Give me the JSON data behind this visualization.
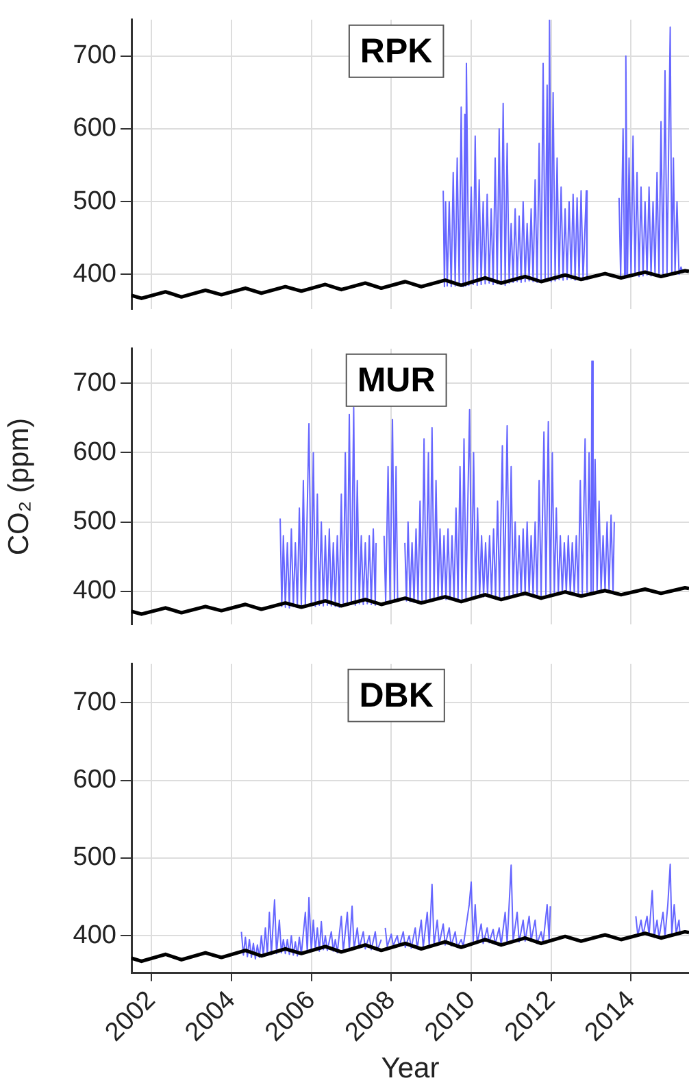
{
  "chart_data": [
    {
      "type": "line",
      "title": "RPK",
      "xlim": [
        2001.5,
        2015.45
      ],
      "xticks": [
        2002,
        2004,
        2006,
        2008,
        2010,
        2012,
        2014
      ],
      "ylim": [
        352,
        750
      ],
      "yticks": [
        400,
        500,
        600,
        700
      ],
      "grid": true,
      "tick_labels": "y",
      "series": [
        {
          "color": "#6666ff",
          "x": [
            2009.3,
            2009.33,
            2009.36,
            2009.4,
            2009.45,
            2009.5,
            2009.55,
            2009.6,
            2009.65,
            2009.7,
            2009.75,
            2009.8,
            2009.84,
            2009.86,
            2009.88,
            2009.94,
            2010.0,
            2010.05,
            2010.1,
            2010.15,
            2010.2,
            2010.25,
            2010.3,
            2010.35,
            2010.4,
            2010.45,
            2010.5,
            2010.55,
            2010.6,
            2010.65,
            2010.7,
            2010.75,
            2010.8,
            2010.85,
            2010.9,
            2010.95,
            2011.0,
            2011.05,
            2011.1,
            2011.15,
            2011.2,
            2011.25,
            2011.3,
            2011.35,
            2011.4,
            2011.45,
            2011.5,
            2011.55,
            2011.6,
            2011.65,
            2011.7,
            2011.75,
            2011.8,
            2011.85,
            2011.9,
            2011.93,
            2011.96,
            2012.0,
            2012.05,
            2012.1,
            2012.15,
            2012.2,
            2012.25,
            2012.3,
            2012.35,
            2012.4,
            2012.45,
            2012.5,
            2012.55,
            2012.6,
            2012.65,
            2012.7,
            2012.75,
            2012.8,
            2012.88,
            2012.9,
            2013.3,
            2013.7,
            2013.74,
            2013.8,
            2013.84,
            2013.87,
            2013.91,
            2013.95,
            2014.0,
            2014.05,
            2014.1,
            2014.15,
            2014.2,
            2014.25,
            2014.3,
            2014.35,
            2014.4,
            2014.45,
            2014.5,
            2014.55,
            2014.6,
            2014.65,
            2014.7,
            2014.75,
            2014.8,
            2014.85,
            2014.9,
            2014.98,
            2015.02,
            2015.06,
            2015.1,
            2015.15,
            2015.2,
            2015.25,
            2015.3
          ],
          "values": [
            515,
            383,
            500,
            384,
            500,
            383,
            540,
            384,
            560,
            385,
            630,
            383,
            620,
            384,
            690,
            385,
            520,
            386,
            590,
            385,
            530,
            386,
            500,
            387,
            510,
            388,
            490,
            386,
            560,
            387,
            600,
            386,
            635,
            385,
            580,
            388,
            470,
            389,
            490,
            390,
            480,
            389,
            500,
            390,
            470,
            391,
            490,
            390,
            530,
            389,
            580,
            390,
            690,
            392,
            660,
            392,
            750,
            390,
            650,
            391,
            560,
            393,
            520,
            392,
            490,
            393,
            500,
            394,
            510,
            392,
            505,
            393,
            515,
            392,
            515,
            393,
            null,
            505,
            396,
            600,
            397,
            700,
            396,
            560,
            397,
            590,
            398,
            540,
            397,
            520,
            398,
            500,
            399,
            520,
            398,
            500,
            399,
            540,
            398,
            610,
            399,
            680,
            400,
            740,
            400,
            560,
            401,
            500,
            400,
            410,
            402
          ]
        },
        {
          "color": "#000000",
          "x": [
            2001.5,
            2001.75,
            2002.35,
            2002.75,
            2003.35,
            2003.75,
            2004.35,
            2004.75,
            2005.35,
            2005.75,
            2006.35,
            2006.75,
            2007.35,
            2007.75,
            2008.35,
            2008.75,
            2009.35,
            2009.75,
            2010.35,
            2010.75,
            2011.35,
            2011.75,
            2012.35,
            2012.75,
            2013.35,
            2013.75,
            2014.35,
            2014.75,
            2015.35,
            2015.45
          ],
          "values": [
            371,
            367,
            376,
            369,
            378,
            372,
            381,
            374,
            383,
            377,
            386,
            379,
            388,
            381,
            390,
            383,
            392,
            385,
            395,
            388,
            397,
            390,
            399,
            393,
            401,
            395,
            403,
            397,
            405,
            404
          ]
        }
      ]
    },
    {
      "type": "line",
      "title": "MUR",
      "ylabel": "CO₂ (ppm)",
      "xlim": [
        2001.5,
        2015.45
      ],
      "xticks": [
        2002,
        2004,
        2006,
        2008,
        2010,
        2012,
        2014
      ],
      "ylim": [
        352,
        750
      ],
      "yticks": [
        400,
        500,
        600,
        700
      ],
      "grid": true,
      "tick_labels": "y",
      "series": [
        {
          "color": "#6666ff",
          "x": [
            2005.22,
            2005.26,
            2005.3,
            2005.35,
            2005.4,
            2005.45,
            2005.5,
            2005.55,
            2005.6,
            2005.65,
            2005.7,
            2005.75,
            2005.8,
            2005.85,
            2005.94,
            2006.0,
            2006.05,
            2006.1,
            2006.15,
            2006.2,
            2006.25,
            2006.3,
            2006.35,
            2006.4,
            2006.45,
            2006.5,
            2006.55,
            2006.6,
            2006.65,
            2006.7,
            2006.75,
            2006.8,
            2006.85,
            2006.9,
            2006.95,
            2007.0,
            2007.06,
            2007.1,
            2007.15,
            2007.2,
            2007.25,
            2007.3,
            2007.35,
            2007.4,
            2007.45,
            2007.5,
            2007.55,
            2007.6,
            2007.62,
            2007.7,
            2007.82,
            2007.86,
            2007.92,
            2007.97,
            2008.03,
            2008.08,
            2008.12,
            2008.16,
            2008.25,
            2008.34,
            2008.38,
            2008.42,
            2008.47,
            2008.52,
            2008.57,
            2008.62,
            2008.67,
            2008.72,
            2008.77,
            2008.82,
            2008.87,
            2008.93,
            2008.97,
            2009.02,
            2009.07,
            2009.12,
            2009.17,
            2009.22,
            2009.27,
            2009.32,
            2009.37,
            2009.42,
            2009.47,
            2009.52,
            2009.57,
            2009.62,
            2009.67,
            2009.72,
            2009.77,
            2009.82,
            2009.87,
            2009.96,
            2010.01,
            2010.06,
            2010.11,
            2010.16,
            2010.21,
            2010.26,
            2010.31,
            2010.36,
            2010.41,
            2010.46,
            2010.51,
            2010.56,
            2010.61,
            2010.66,
            2010.71,
            2010.78,
            2010.83,
            2010.9,
            2010.95,
            2011.0,
            2011.05,
            2011.1,
            2011.15,
            2011.2,
            2011.25,
            2011.3,
            2011.35,
            2011.4,
            2011.45,
            2011.5,
            2011.55,
            2011.6,
            2011.65,
            2011.7,
            2011.75,
            2011.82,
            2011.87,
            2011.93,
            2011.98,
            2012.03,
            2012.08,
            2012.13,
            2012.18,
            2012.23,
            2012.28,
            2012.33,
            2012.38,
            2012.43,
            2012.48,
            2012.53,
            2012.58,
            2012.63,
            2012.68,
            2012.73,
            2012.78,
            2012.85,
            2012.9,
            2012.95,
            2013.0,
            2013.02,
            2013.05,
            2013.1,
            2013.15,
            2013.2,
            2013.25,
            2013.3,
            2013.35,
            2013.4,
            2013.45,
            2013.5,
            2013.55,
            2013.58
          ],
          "values": [
            505,
            378,
            480,
            377,
            470,
            376,
            490,
            378,
            470,
            377,
            520,
            376,
            560,
            378,
            642,
            379,
            600,
            378,
            540,
            380,
            500,
            379,
            480,
            380,
            490,
            379,
            470,
            378,
            480,
            377,
            540,
            378,
            600,
            380,
            655,
            381,
            665,
            380,
            560,
            382,
            480,
            381,
            470,
            382,
            480,
            381,
            490,
            380,
            470,
            null,
            480,
            384,
            580,
            385,
            648,
            386,
            580,
            385,
            null,
            470,
            386,
            500,
            385,
            470,
            384,
            490,
            386,
            530,
            385,
            620,
            387,
            600,
            388,
            636,
            387,
            560,
            388,
            490,
            389,
            480,
            388,
            490,
            389,
            480,
            388,
            520,
            387,
            580,
            388,
            620,
            390,
            662,
            391,
            600,
            392,
            520,
            391,
            480,
            392,
            470,
            393,
            480,
            392,
            490,
            391,
            530,
            390,
            610,
            392,
            639,
            393,
            580,
            394,
            500,
            395,
            480,
            394,
            490,
            395,
            500,
            394,
            480,
            393,
            500,
            392,
            560,
            393,
            630,
            395,
            645,
            396,
            600,
            397,
            520,
            396,
            480,
            397,
            470,
            398,
            480,
            397,
            470,
            396,
            480,
            395,
            560,
            396,
            620,
            398,
            600,
            399,
            732,
            399,
            590,
            400,
            530,
            401,
            480,
            400,
            500,
            401,
            510,
            400,
            500
          ]
        },
        {
          "color": "#000000",
          "x": [
            2001.5,
            2001.75,
            2002.35,
            2002.75,
            2003.35,
            2003.75,
            2004.35,
            2004.75,
            2005.35,
            2005.75,
            2006.35,
            2006.75,
            2007.35,
            2007.75,
            2008.35,
            2008.75,
            2009.35,
            2009.75,
            2010.35,
            2010.75,
            2011.35,
            2011.75,
            2012.35,
            2012.75,
            2013.35,
            2013.75,
            2014.35,
            2014.75,
            2015.35,
            2015.45
          ],
          "values": [
            371,
            367,
            376,
            369,
            378,
            372,
            381,
            374,
            383,
            377,
            386,
            379,
            388,
            381,
            390,
            383,
            392,
            385,
            395,
            388,
            397,
            390,
            399,
            393,
            401,
            395,
            403,
            397,
            405,
            404
          ]
        }
      ]
    },
    {
      "type": "line",
      "title": "DBK",
      "xlabel": "Year",
      "xlim": [
        2001.5,
        2015.45
      ],
      "xticks": [
        2002,
        2004,
        2006,
        2008,
        2010,
        2012,
        2014
      ],
      "ylim": [
        352,
        750
      ],
      "yticks": [
        400,
        500,
        600,
        700
      ],
      "grid": true,
      "series": [
        {
          "color": "#6666ff",
          "x": [
            2004.25,
            2004.3,
            2004.35,
            2004.4,
            2004.45,
            2004.5,
            2004.55,
            2004.6,
            2004.65,
            2004.7,
            2004.75,
            2004.8,
            2004.85,
            2004.9,
            2004.95,
            2005.0,
            2005.08,
            2005.13,
            2005.2,
            2005.25,
            2005.3,
            2005.35,
            2005.4,
            2005.45,
            2005.5,
            2005.55,
            2005.6,
            2005.65,
            2005.7,
            2005.75,
            2005.85,
            2005.9,
            2005.94,
            2006.0,
            2006.05,
            2006.1,
            2006.15,
            2006.2,
            2006.25,
            2006.3,
            2006.35,
            2006.4,
            2006.5,
            2006.55,
            2006.6,
            2006.65,
            2006.75,
            2006.8,
            2006.9,
            2006.95,
            2007.02,
            2007.07,
            2007.15,
            2007.2,
            2007.3,
            2007.35,
            2007.45,
            2007.5,
            2007.6,
            2007.65,
            2007.75,
            2007.78,
            2007.85,
            2007.9,
            2008.0,
            2008.05,
            2008.15,
            2008.2,
            2008.3,
            2008.35,
            2008.45,
            2008.5,
            2008.6,
            2008.65,
            2008.75,
            2008.8,
            2008.9,
            2008.95,
            2009.02,
            2009.07,
            2009.15,
            2009.2,
            2009.3,
            2009.35,
            2009.45,
            2009.5,
            2009.6,
            2009.65,
            2009.75,
            2009.8,
            2009.95,
            2010.0,
            2010.05,
            2010.1,
            2010.15,
            2010.25,
            2010.3,
            2010.4,
            2010.45,
            2010.55,
            2010.6,
            2010.7,
            2010.75,
            2010.85,
            2010.9,
            2011.0,
            2011.05,
            2011.15,
            2011.2,
            2011.3,
            2011.35,
            2011.45,
            2011.5,
            2011.6,
            2011.65,
            2011.75,
            2011.8,
            2011.9,
            2011.95,
            2011.98,
            2013.0,
            2014.12,
            2014.17,
            2014.25,
            2014.3,
            2014.4,
            2014.45,
            2014.53,
            2014.58,
            2014.65,
            2014.7,
            2014.8,
            2014.85,
            2014.92,
            2014.98,
            2015.02,
            2015.08,
            2015.13,
            2015.2,
            2015.22
          ],
          "values": [
            405,
            375,
            398,
            373,
            395,
            372,
            390,
            370,
            388,
            372,
            400,
            374,
            410,
            375,
            430,
            376,
            446,
            377,
            420,
            378,
            395,
            377,
            395,
            376,
            400,
            375,
            392,
            374,
            398,
            376,
            430,
            378,
            449,
            380,
            420,
            381,
            410,
            380,
            418,
            382,
            400,
            381,
            405,
            380,
            395,
            378,
            425,
            380,
            430,
            382,
            438,
            383,
            410,
            384,
            405,
            383,
            400,
            382,
            405,
            381,
            395,
            null,
            410,
            386,
            402,
            387,
            400,
            386,
            405,
            385,
            400,
            384,
            410,
            383,
            420,
            385,
            430,
            387,
            466,
            388,
            420,
            389,
            415,
            388,
            410,
            387,
            405,
            385,
            395,
            386,
            440,
            469,
            392,
            440,
            391,
            415,
            390,
            410,
            391,
            408,
            389,
            410,
            388,
            430,
            390,
            491,
            393,
            430,
            392,
            420,
            393,
            425,
            394,
            420,
            390,
            405,
            391,
            440,
            394,
            438,
            null,
            425,
            400,
            420,
            401,
            425,
            400,
            458,
            398,
            420,
            397,
            430,
            399,
            440,
            492,
            402,
            440,
            403,
            420,
            405
          ]
        },
        {
          "color": "#000000",
          "x": [
            2001.5,
            2001.75,
            2002.35,
            2002.75,
            2003.35,
            2003.75,
            2004.35,
            2004.75,
            2005.35,
            2005.75,
            2006.35,
            2006.75,
            2007.35,
            2007.75,
            2008.35,
            2008.75,
            2009.35,
            2009.75,
            2010.35,
            2010.75,
            2011.35,
            2011.75,
            2012.35,
            2012.75,
            2013.35,
            2013.75,
            2014.35,
            2014.75,
            2015.35,
            2015.45
          ],
          "values": [
            371,
            367,
            376,
            369,
            378,
            372,
            381,
            374,
            383,
            377,
            386,
            379,
            388,
            381,
            390,
            383,
            392,
            385,
            395,
            388,
            397,
            390,
            399,
            393,
            401,
            395,
            403,
            397,
            405,
            404
          ]
        }
      ]
    }
  ]
}
